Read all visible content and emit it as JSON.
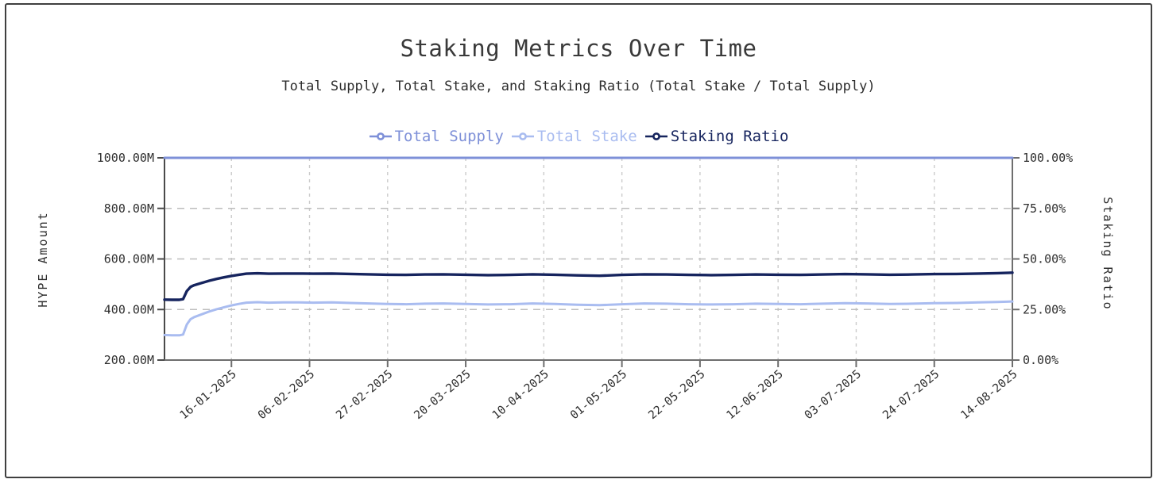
{
  "page": {
    "background": "#ffffff",
    "card_border_color": "#3f3f3f"
  },
  "chart": {
    "title": "Staking Metrics Over Time",
    "subtitle": "Total Supply, Total Stake, and Staking Ratio (Total Stake / Total Supply)"
  },
  "chart_data": {
    "type": "line",
    "title": "Staking Metrics Over Time",
    "subtitle": "Total Supply, Total Stake, and Staking Ratio (Total Stake / Total Supply)",
    "legend_position": "top-center",
    "grid": {
      "vertical_dashed": true,
      "horizontal_dashed": true,
      "color": "#c6c6c6"
    },
    "x_axis": {
      "tick_labels": [
        "16-01-2025",
        "06-02-2025",
        "27-02-2025",
        "20-03-2025",
        "10-04-2025",
        "01-05-2025",
        "22-05-2025",
        "12-06-2025",
        "03-07-2025",
        "24-07-2025",
        "14-08-2025"
      ],
      "tick_days": [
        18,
        39,
        60,
        81,
        102,
        123,
        144,
        165,
        186,
        207,
        228
      ],
      "domain_days": [
        0,
        228
      ],
      "label_rotation_deg": -40
    },
    "left_axis": {
      "label": "HYPE Amount",
      "tick_labels": [
        "1000.00M",
        "800.00M",
        "600.00M",
        "400.00M",
        "200.00M"
      ],
      "tick_values": [
        1000,
        800,
        600,
        400,
        200
      ],
      "range": [
        200,
        1000
      ],
      "unit": "M HYPE"
    },
    "right_axis": {
      "label": "Staking Ratio",
      "tick_labels": [
        "100.00%",
        "75.00%",
        "50.00%",
        "25.00%",
        "0.00%"
      ],
      "tick_values": [
        100,
        75,
        50,
        25,
        0
      ],
      "range": [
        0,
        100
      ],
      "unit": "%"
    },
    "x_days": [
      0,
      2,
      4,
      5,
      6,
      7,
      8,
      10,
      12,
      14,
      16,
      18,
      20,
      22,
      25,
      28,
      32,
      36,
      40,
      45,
      50,
      55,
      60,
      65,
      70,
      75,
      81,
      87,
      93,
      99,
      105,
      111,
      117,
      123,
      129,
      135,
      141,
      147,
      153,
      159,
      165,
      171,
      177,
      183,
      189,
      195,
      201,
      207,
      213,
      219,
      224,
      228
    ],
    "series": [
      {
        "name": "Total Supply",
        "axis": "left",
        "color": "#7e90d8",
        "line_width": 3,
        "values": [
          1000,
          1000,
          1000,
          1000,
          1000,
          1000,
          1000,
          1000,
          1000,
          1000,
          1000,
          1000,
          1000,
          1000,
          1000,
          1000,
          1000,
          1000,
          1000,
          1000,
          1000,
          1000,
          1000,
          1000,
          1000,
          1000,
          1000,
          1000,
          1000,
          1000,
          1000,
          1000,
          1000,
          1000,
          1000,
          1000,
          1000,
          1000,
          1000,
          1000,
          1000,
          1000,
          1000,
          1000,
          1000,
          1000,
          1000,
          1000,
          1000,
          1000,
          1000,
          1000
        ]
      },
      {
        "name": "Total Stake",
        "axis": "left",
        "color": "#a9bcf0",
        "line_width": 3,
        "values": [
          299,
          298,
          298,
          301,
          341,
          362,
          370,
          381,
          392,
          401,
          409,
          416,
          422,
          427,
          429,
          427,
          428,
          428,
          427,
          428,
          426,
          424,
          422,
          421,
          423,
          424,
          422,
          420,
          421,
          424,
          422,
          419,
          417,
          421,
          424,
          423,
          421,
          420,
          421,
          423,
          422,
          421,
          423,
          425,
          424,
          422,
          423,
          425,
          426,
          428,
          430,
          432
        ]
      },
      {
        "name": "Staking Ratio",
        "axis": "right",
        "color": "#16245e",
        "line_width": 3.4,
        "values": [
          29.9,
          29.8,
          29.8,
          30.1,
          34.1,
          36.2,
          37.0,
          38.1,
          39.2,
          40.1,
          40.9,
          41.6,
          42.2,
          42.7,
          42.9,
          42.7,
          42.8,
          42.8,
          42.7,
          42.8,
          42.6,
          42.4,
          42.2,
          42.1,
          42.3,
          42.4,
          42.2,
          42.0,
          42.1,
          42.4,
          42.2,
          41.9,
          41.7,
          42.1,
          42.4,
          42.3,
          42.1,
          42.0,
          42.1,
          42.3,
          42.2,
          42.1,
          42.3,
          42.5,
          42.4,
          42.2,
          42.3,
          42.5,
          42.6,
          42.8,
          43.0,
          43.2
        ]
      }
    ]
  }
}
